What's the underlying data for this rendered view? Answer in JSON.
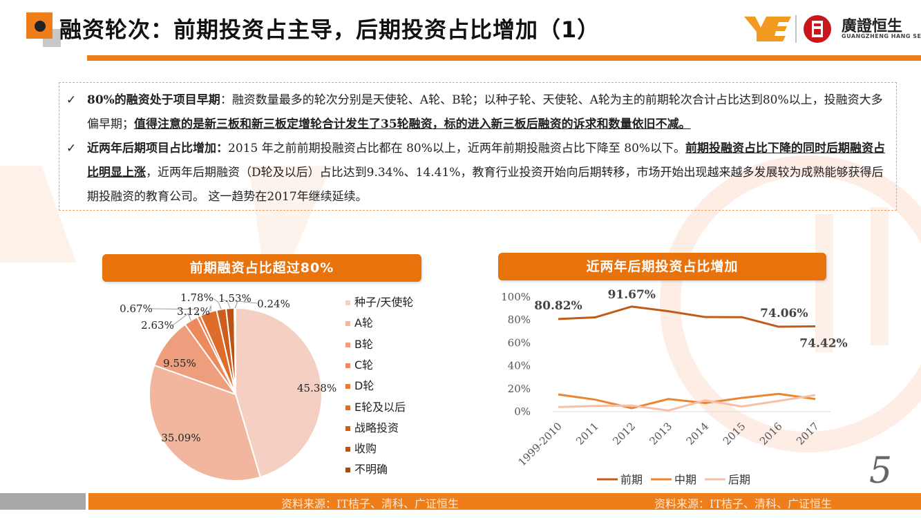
{
  "title": "融资轮次：前期投资占主导，后期投资占比增加（1）",
  "logo": {
    "cn": "廣證恒生",
    "en": "GUANGZHENG HANG SENG"
  },
  "bullets": [
    {
      "check": "✓",
      "lead": "80%的融资处于项目早期",
      "sep": "：",
      "text1": "融资数量最多的轮次分别是天使轮、A轮、B轮；以种子轮、天使轮、A轮为主的前期轮次合计占比达到80%以上，投融资大多偏早期；",
      "underline": "值得注意的是新三板和新三板定增轮合计发生了35轮融资，标的进入新三板后融资的诉求和数量依旧不减。"
    },
    {
      "check": "✓",
      "lead": "近两年后期项目占比增加：",
      "text1": "2015 年之前前期投融资占比都在 80%以上，近两年前期投融资占比下降至 80%以下。",
      "underline": "前期投融资占比下降的同时后期融资占比明显上涨",
      "text2": "，近两年后期融资（D轮及以后）占比达到9.34%、14.41%，教育行业投资开始向后期转移，市场开始出现越来越多发展较为成熟能够获得后期投融资的教育公司。 这一趋势在2017年继续延续。"
    }
  ],
  "pie_title": "前期融资占比超过80%",
  "line_title": "近两年后期投资占比增加",
  "chart_data": [
    {
      "type": "pie",
      "categories": [
        "种子/天使轮",
        "A轮",
        "B轮",
        "C轮",
        "D轮",
        "E轮及以后",
        "战略投资",
        "收购",
        "不明确"
      ],
      "values": [
        45.38,
        35.09,
        9.55,
        2.63,
        0.67,
        3.12,
        1.78,
        1.53,
        0.24
      ],
      "labels": [
        "45.38%",
        "35.09%",
        "9.55%",
        "2.63%",
        "0.67%",
        "3.12%",
        "1.78%",
        "1.53%",
        "0.24%"
      ],
      "colors": [
        "#f5cfc2",
        "#f2b59e",
        "#ee9e7c",
        "#ec8a5e",
        "#e67a3f",
        "#de6d2b",
        "#cf5e1e",
        "#be5214",
        "#a8470e"
      ],
      "legend_position": "right"
    },
    {
      "type": "line",
      "categories": [
        "1999-2010",
        "2011",
        "2012",
        "2013",
        "2014",
        "2015",
        "2016",
        "2017"
      ],
      "series": [
        {
          "name": "前期",
          "color": "#c25a18",
          "values": [
            80.82,
            82.2,
            91.67,
            87.6,
            82.5,
            82.4,
            74.06,
            74.42
          ]
        },
        {
          "name": "中期",
          "color": "#ec8530",
          "values": [
            15.0,
            10.5,
            3.0,
            11.0,
            7.5,
            12.0,
            15.5,
            11.0
          ]
        },
        {
          "name": "后期",
          "color": "#f6bfa8",
          "values": [
            4.0,
            5.0,
            5.3,
            1.0,
            9.8,
            4.5,
            9.34,
            14.41
          ]
        }
      ],
      "ylim": [
        0,
        100
      ],
      "yticks": [
        "0%",
        "20%",
        "40%",
        "60%",
        "80%",
        "100%"
      ],
      "annotations": [
        "80.82%",
        "91.67%",
        "74.06%",
        "74.42%"
      ],
      "legend_position": "bottom",
      "grid": false
    }
  ],
  "source_left": "资料来源：IT桔子、清科、广证恒生",
  "source_right": "资料来源：IT桔子、清科、广证恒生",
  "page_number": "5",
  "colors": {
    "accent": "#ef7d1a",
    "pill": "#e8720c",
    "footer_gray": "#a8a8a8"
  }
}
